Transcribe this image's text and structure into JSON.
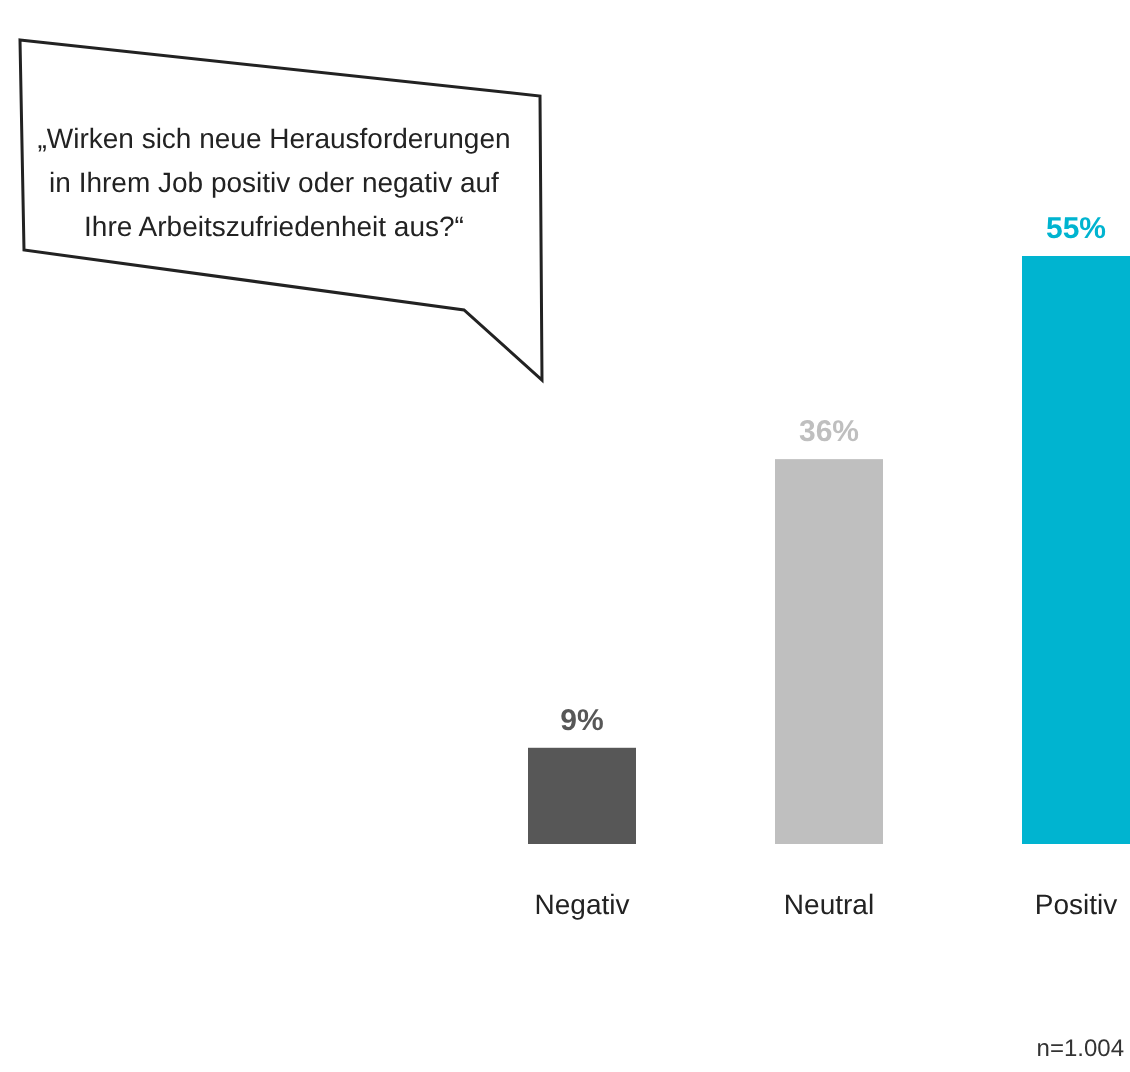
{
  "chart_data": {
    "type": "bar",
    "title": "„Wirken sich neue Herausforderungen in Ihrem Job positiv oder negativ auf Ihre Arbeitszufriedenheit aus?“",
    "categories": [
      "Negativ",
      "Neutral",
      "Positiv"
    ],
    "values": [
      9,
      36,
      55
    ],
    "colors": [
      "#575757",
      "#bfbfbf",
      "#00b4d0"
    ],
    "value_labels": [
      "9%",
      "36%",
      "55%"
    ],
    "annotations": [
      "n=1.004"
    ]
  }
}
